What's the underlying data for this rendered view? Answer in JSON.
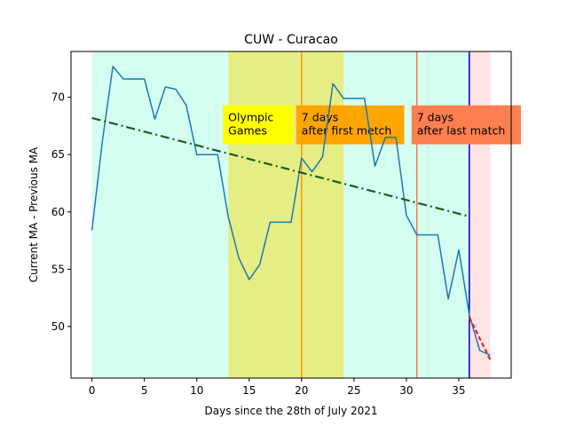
{
  "chart_data": {
    "type": "line",
    "title": "CUW - Curacao",
    "xlabel": "Days since the 28th of July 2021",
    "ylabel": "Current MA - Previous MA",
    "xlim": [
      -2,
      40
    ],
    "ylim": [
      45.5,
      74.0
    ],
    "xticks": [
      0,
      5,
      10,
      15,
      20,
      25,
      30,
      35
    ],
    "yticks": [
      50,
      55,
      60,
      65,
      70
    ],
    "grid": false,
    "shaded_regions": [
      {
        "x0": 0,
        "x1": 36,
        "color": "#d4fff0"
      },
      {
        "x0": 13,
        "x1": 24,
        "color": "#e5ee84"
      },
      {
        "x0": 36,
        "x1": 38,
        "color": "#ffe4e4"
      }
    ],
    "vertical_lines": [
      {
        "x": 20,
        "color": "#ff9900"
      },
      {
        "x": 31,
        "color": "#f07a50"
      },
      {
        "x": 36,
        "color": "#0000cc"
      }
    ],
    "series": [
      {
        "color": "#1f77b4",
        "x": [
          0,
          1,
          2,
          3,
          4,
          5,
          6,
          7,
          8,
          9,
          10,
          11,
          12,
          13,
          14,
          15,
          16,
          17,
          18,
          19,
          20,
          21,
          22,
          23,
          24,
          25,
          26,
          27,
          28,
          29,
          30,
          31,
          32,
          33,
          34,
          35,
          36,
          37,
          38
        ],
        "y": [
          58.4,
          66.2,
          72.7,
          71.6,
          71.6,
          71.6,
          68.1,
          70.9,
          70.7,
          69.3,
          65.0,
          65.0,
          65.0,
          59.6,
          56.0,
          54.1,
          55.4,
          59.1,
          59.1,
          59.1,
          64.7,
          63.5,
          64.8,
          71.2,
          69.9,
          69.9,
          69.9,
          64.0,
          66.5,
          66.5,
          59.7,
          58.0,
          58.0,
          58.0,
          52.4,
          56.7,
          51.0,
          47.9,
          47.5
        ]
      },
      {
        "color": "#1a5e20",
        "style": "dashdot",
        "x": [
          0,
          36
        ],
        "y": [
          68.2,
          59.6
        ]
      },
      {
        "color": "#e8261c",
        "style": "dashed",
        "x": [
          36,
          38
        ],
        "y": [
          50.8,
          47.1
        ]
      }
    ],
    "annotations": [
      {
        "text_lines": [
          "Olympic",
          "Games"
        ],
        "bg": "#ffff00",
        "x": 13.0,
        "y_top": 69.3,
        "y_bottom": 65.9,
        "x_right": 19.2
      },
      {
        "text_lines": [
          "7 days",
          "after first metch"
        ],
        "bg": "#ffa500",
        "x": 20.0,
        "y_top": 69.3,
        "y_bottom": 65.9,
        "x_right": 29.8
      },
      {
        "text_lines": [
          "7 days",
          "after last match"
        ],
        "bg": "#ff7f50",
        "x": 31.0,
        "y_top": 69.3,
        "y_bottom": 65.9,
        "x_right": 41.0
      }
    ]
  }
}
